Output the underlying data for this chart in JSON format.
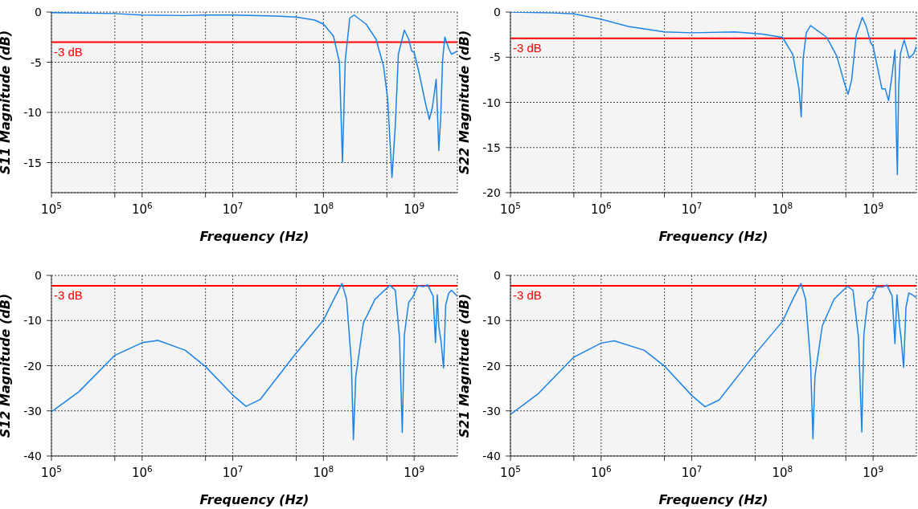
{
  "chart_data": [
    {
      "type": "line",
      "ylabel": "S11 Magnitude (dB)",
      "xlabel": "Frequency (Hz)",
      "log": "x",
      "grid": true,
      "line_style": "solid",
      "marker": "none",
      "xlim": [
        100000,
        3000000000
      ],
      "ylim": [
        -18,
        0
      ],
      "yticks": [
        0,
        -5,
        -10,
        -15
      ],
      "xticks": [
        {
          "value": 100000,
          "label": "10$^{5}$"
        },
        {
          "value": 500000,
          "label": null
        },
        {
          "value": 1000000,
          "label": "10$^{6}$"
        },
        {
          "value": 5000000,
          "label": null
        },
        {
          "value": 10000000,
          "label": "10$^{7}$"
        },
        {
          "value": 50000000,
          "label": null
        },
        {
          "value": 100000000,
          "label": "10$^{8}$"
        },
        {
          "value": 500000000,
          "label": null
        },
        {
          "value": 1000000000,
          "label": "10$^{9}$"
        }
      ],
      "ref_lines": [
        {
          "axis": "y",
          "value": -3,
          "label": "-3 dB",
          "color": "#ff0000"
        }
      ],
      "x": [
        100000.0,
        500000.0,
        1000000.0,
        3000000.0,
        5000000.0,
        10000000.0,
        30000000.0,
        50000000.0,
        80000000.0,
        100000000.0,
        129000000.0,
        150000000.0,
        162000000.0,
        174000000.0,
        195000000.0,
        218000000.0,
        295000000.0,
        380000000.0,
        460000000.0,
        510000000.0,
        570000000.0,
        620000000.0,
        670000000.0,
        780000000.0,
        870000000.0,
        940000000.0,
        1000000000.0,
        1130000000.0,
        1320000000.0,
        1470000000.0,
        1590000000.0,
        1750000000.0,
        1820000000.0,
        1870000000.0,
        1960000000.0,
        2060000000.0,
        2180000000.0,
        2400000000.0,
        2580000000.0,
        3000000000.0
      ],
      "series": [
        {
          "color": "#1a82e8",
          "values": [
            -0.05,
            -0.15,
            -0.3,
            -0.35,
            -0.3,
            -0.3,
            -0.4,
            -0.5,
            -0.8,
            -1.2,
            -2.4,
            -5,
            -15,
            -4.8,
            -0.6,
            -0.3,
            -1.2,
            -2.7,
            -5.4,
            -8.6,
            -16.5,
            -11.3,
            -4.2,
            -1.8,
            -2.7,
            -3.9,
            -4,
            -6,
            -8.9,
            -10.7,
            -9.5,
            -6.7,
            -10.7,
            -13.8,
            -10.7,
            -4.8,
            -2.5,
            -3.6,
            -4.2,
            -3.9
          ]
        }
      ]
    },
    {
      "type": "line",
      "ylabel": "S22 Magnitude (dB)",
      "xlabel": "Frequency (Hz)",
      "log": "x",
      "grid": true,
      "line_style": "solid",
      "marker": "none",
      "xlim": [
        100000,
        3000000000
      ],
      "ylim": [
        -20,
        0
      ],
      "yticks": [
        0,
        -5,
        -10,
        -15,
        -20
      ],
      "xticks": [
        {
          "value": 100000,
          "label": "10$^{5}$"
        },
        {
          "value": 500000,
          "label": null
        },
        {
          "value": 1000000,
          "label": "10$^{6}$"
        },
        {
          "value": 5000000,
          "label": null
        },
        {
          "value": 10000000,
          "label": "10$^{7}$"
        },
        {
          "value": 50000000,
          "label": null
        },
        {
          "value": 100000000,
          "label": "10$^{8}$"
        },
        {
          "value": 500000000,
          "label": null
        },
        {
          "value": 1000000000,
          "label": "10$^{9}$"
        }
      ],
      "ref_lines": [
        {
          "axis": "y",
          "value": -2.9,
          "label": "-3 dB",
          "color": "#ff0000"
        }
      ],
      "x": [
        100000.0,
        300000.0,
        500000.0,
        1000000.0,
        2000000.0,
        5000000.0,
        10000000.0,
        30000000.0,
        60000000.0,
        100000000.0,
        130000000.0,
        152000000.0,
        161000000.0,
        169000000.0,
        183000000.0,
        204000000.0,
        308000000.0,
        398000000.0,
        480000000.0,
        530000000.0,
        580000000.0,
        650000000.0,
        760000000.0,
        840000000.0,
        940000000.0,
        1000000000.0,
        1250000000.0,
        1360000000.0,
        1480000000.0,
        1620000000.0,
        1740000000.0,
        1790000000.0,
        1850000000.0,
        1910000000.0,
        2000000000.0,
        2200000000.0,
        2500000000.0,
        2800000000.0,
        3000000000.0
      ],
      "series": [
        {
          "color": "#1a82e8",
          "values": [
            0,
            -0.1,
            -0.2,
            -0.8,
            -1.6,
            -2.2,
            -2.3,
            -2.2,
            -2.45,
            -2.8,
            -4.7,
            -8.5,
            -11.6,
            -5.2,
            -2.3,
            -1.5,
            -2.8,
            -4.9,
            -7.8,
            -9.1,
            -7.5,
            -2.6,
            -0.6,
            -1.6,
            -3.4,
            -3.8,
            -8.5,
            -8.5,
            -9.8,
            -6.9,
            -4.2,
            -12.1,
            -18,
            -8.5,
            -4.6,
            -3.1,
            -5.1,
            -4.6,
            -3.8
          ]
        }
      ]
    },
    {
      "type": "line",
      "ylabel": "S12 Magnitude (dB)",
      "xlabel": "Frequency (Hz)",
      "log": "x",
      "grid": true,
      "line_style": "solid",
      "marker": "none",
      "xlim": [
        100000,
        3000000000
      ],
      "ylim": [
        -40,
        0
      ],
      "yticks": [
        0,
        -10,
        -20,
        -30,
        -40
      ],
      "xticks": [
        {
          "value": 100000,
          "label": "10$^{5}$"
        },
        {
          "value": 500000,
          "label": null
        },
        {
          "value": 1000000,
          "label": "10$^{6}$"
        },
        {
          "value": 5000000,
          "label": null
        },
        {
          "value": 10000000,
          "label": "10$^{7}$"
        },
        {
          "value": 50000000,
          "label": null
        },
        {
          "value": 100000000,
          "label": "10$^{8}$"
        },
        {
          "value": 500000000,
          "label": null
        },
        {
          "value": 1000000000,
          "label": "10$^{9}$"
        }
      ],
      "ref_lines": [
        {
          "axis": "y",
          "value": -2.3,
          "label": "-3 dB",
          "color": "#ff0000"
        }
      ],
      "x": [
        100000.0,
        200000.0,
        500000.0,
        1000000.0,
        1500000.0,
        3000000.0,
        5000000.0,
        10000000.0,
        14000000.0,
        20000000.0,
        50000000.0,
        100000000.0,
        130000000.0,
        160000000.0,
        180000000.0,
        203000000.0,
        214000000.0,
        227000000.0,
        275000000.0,
        370000000.0,
        540000000.0,
        620000000.0,
        690000000.0,
        740000000.0,
        780000000.0,
        870000000.0,
        980000000.0,
        1100000000.0,
        1260000000.0,
        1410000000.0,
        1620000000.0,
        1720000000.0,
        1800000000.0,
        1870000000.0,
        1980000000.0,
        2110000000.0,
        2230000000.0,
        2400000000.0,
        2580000000.0,
        2790000000.0,
        3000000000.0
      ],
      "series": [
        {
          "color": "#1a82e8",
          "values": [
            -30.2,
            -25.8,
            -17.7,
            -14.9,
            -14.4,
            -16.6,
            -20.2,
            -26.5,
            -29,
            -27.5,
            -17.2,
            -9.9,
            -5.3,
            -1.8,
            -5.3,
            -19.2,
            -36.4,
            -22.5,
            -10.6,
            -5.3,
            -2.2,
            -3.3,
            -13.9,
            -34.8,
            -13.2,
            -6,
            -4.6,
            -2.3,
            -2.5,
            -2.1,
            -4.6,
            -14.9,
            -4.3,
            -11.3,
            -14.6,
            -20.5,
            -6.6,
            -4,
            -3.3,
            -4,
            -4.6
          ]
        }
      ]
    },
    {
      "type": "line",
      "ylabel": "S21 Magnitude (dB)",
      "xlabel": "Frequency (Hz)",
      "log": "x",
      "grid": true,
      "line_style": "solid",
      "marker": "none",
      "xlim": [
        100000,
        3000000000
      ],
      "ylim": [
        -40,
        0
      ],
      "yticks": [
        0,
        -10,
        -20,
        -30,
        -40
      ],
      "xticks": [
        {
          "value": 100000,
          "label": "10$^{5}$"
        },
        {
          "value": 500000,
          "label": null
        },
        {
          "value": 1000000,
          "label": "10$^{6}$"
        },
        {
          "value": 5000000,
          "label": null
        },
        {
          "value": 10000000,
          "label": "10$^{7}$"
        },
        {
          "value": 50000000,
          "label": null
        },
        {
          "value": 100000000,
          "label": "10$^{8}$"
        },
        {
          "value": 500000000,
          "label": null
        },
        {
          "value": 1000000000,
          "label": "10$^{9}$"
        }
      ],
      "ref_lines": [
        {
          "axis": "y",
          "value": -2.3,
          "label": "-3 dB",
          "color": "#ff0000"
        }
      ],
      "x": [
        100000.0,
        200000.0,
        500000.0,
        1000000.0,
        1400000.0,
        3000000.0,
        5000000.0,
        10000000.0,
        14000000.0,
        20000000.0,
        50000000.0,
        100000000.0,
        130000000.0,
        160000000.0,
        180000000.0,
        204000000.0,
        217000000.0,
        228000000.0,
        275000000.0,
        370000000.0,
        520000000.0,
        600000000.0,
        690000000.0,
        750000000.0,
        790000000.0,
        870000000.0,
        980000000.0,
        1100000000.0,
        1270000000.0,
        1420000000.0,
        1620000000.0,
        1740000000.0,
        1830000000.0,
        1940000000.0,
        2030000000.0,
        2170000000.0,
        2300000000.0,
        2470000000.0,
        2700000000.0,
        3000000000.0
      ],
      "series": [
        {
          "color": "#1a82e8",
          "values": [
            -30.8,
            -26.3,
            -18.1,
            -15,
            -14.5,
            -16.6,
            -20.1,
            -26.6,
            -29.1,
            -27.6,
            -17.4,
            -10.2,
            -5.3,
            -1.8,
            -5.3,
            -19.1,
            -36.2,
            -22.4,
            -11.2,
            -5.3,
            -2.4,
            -3.3,
            -13.8,
            -34.7,
            -13.2,
            -5.9,
            -4.9,
            -2.5,
            -2.6,
            -2.1,
            -4.6,
            -15.1,
            -4.3,
            -10.5,
            -13.8,
            -20.4,
            -7.2,
            -3.9,
            -4.3,
            -4.9
          ]
        }
      ]
    }
  ]
}
